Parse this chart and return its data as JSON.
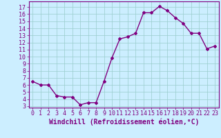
{
  "x": [
    0,
    1,
    2,
    3,
    4,
    5,
    6,
    7,
    8,
    9,
    10,
    11,
    12,
    13,
    14,
    15,
    16,
    17,
    18,
    19,
    20,
    21,
    22,
    23
  ],
  "y": [
    6.5,
    6.0,
    6.0,
    4.5,
    4.3,
    4.3,
    3.2,
    3.5,
    3.5,
    6.5,
    9.8,
    12.5,
    12.8,
    13.3,
    16.2,
    16.2,
    17.1,
    16.5,
    15.5,
    14.7,
    13.3,
    13.3,
    11.1,
    11.5
  ],
  "line_color": "#800080",
  "marker": "D",
  "marker_size": 2,
  "bg_color": "#cceeff",
  "grid_color": "#99cccc",
  "xlabel": "Windchill (Refroidissement éolien,°C)",
  "xlabel_fontsize": 7,
  "yticks": [
    3,
    4,
    5,
    6,
    7,
    8,
    9,
    10,
    11,
    12,
    13,
    14,
    15,
    16,
    17
  ],
  "xticks": [
    0,
    1,
    2,
    3,
    4,
    5,
    6,
    7,
    8,
    9,
    10,
    11,
    12,
    13,
    14,
    15,
    16,
    17,
    18,
    19,
    20,
    21,
    22,
    23
  ],
  "xlim": [
    -0.5,
    23.5
  ],
  "ylim": [
    2.8,
    17.8
  ],
  "tick_fontsize": 6,
  "line_width": 1.0,
  "spine_color": "#800080"
}
